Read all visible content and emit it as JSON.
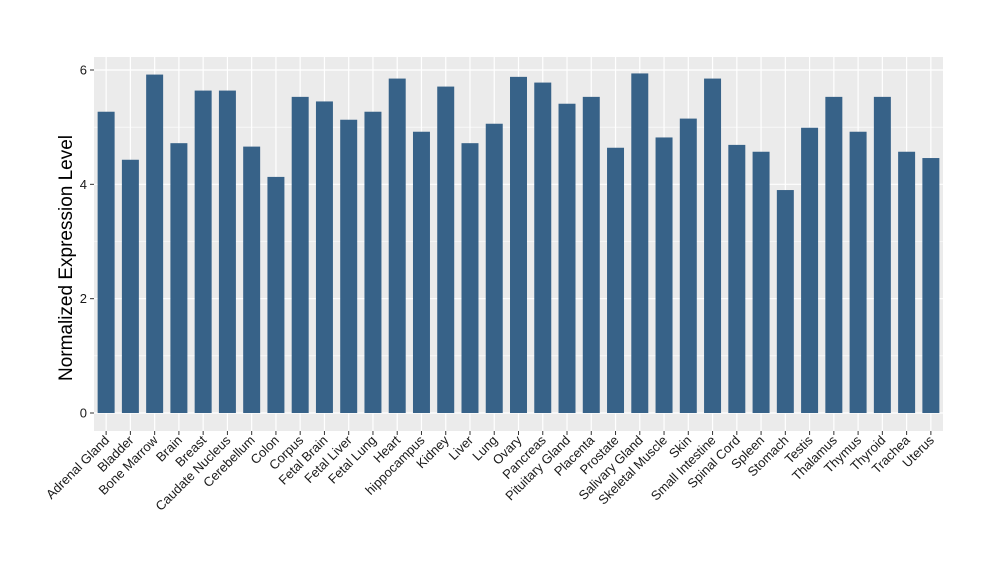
{
  "chart_data": {
    "type": "bar",
    "title": "",
    "xlabel": "",
    "ylabel": "Normalized Expression Level",
    "ylim": [
      -0.25,
      6.2
    ],
    "yticks": [
      0,
      2,
      4,
      6
    ],
    "grid": true,
    "legend": "none",
    "colors": {
      "bar": "#376288",
      "panel": "#ebebeb",
      "grid_major": "#ffffff",
      "tick": "#333333"
    },
    "categories": [
      "Adrenal Gland",
      "Bladder",
      "Bone Marrow",
      "Brain",
      "Breast",
      "Caudate Nucleus",
      "Cerebellum",
      "Colon",
      "Corpus",
      "Fetal Brain",
      "Fetal Liver",
      "Fetal Lung",
      "Heart",
      "hippocampus",
      "Kidney",
      "Liver",
      "Lung",
      "Ovary",
      "Pancreas",
      "Pituitary Gland",
      "Placenta",
      "Prostate",
      "Salivary Gland",
      "Skeletal Muscle",
      "Skin",
      "Small Intestine",
      "Spinal Cord",
      "Spleen",
      "Stomach",
      "Testis",
      "Thalamus",
      "Thymus",
      "Thyroid",
      "Trachea",
      "Uterus"
    ],
    "values": [
      5.27,
      4.43,
      5.92,
      4.72,
      5.64,
      5.64,
      4.66,
      4.13,
      5.53,
      5.45,
      5.13,
      5.27,
      5.85,
      4.92,
      5.71,
      4.72,
      5.06,
      5.88,
      5.78,
      5.41,
      5.53,
      4.64,
      5.94,
      4.82,
      5.15,
      5.85,
      4.69,
      4.57,
      3.9,
      4.99,
      5.53,
      4.92,
      5.53,
      4.57,
      4.46
    ]
  }
}
